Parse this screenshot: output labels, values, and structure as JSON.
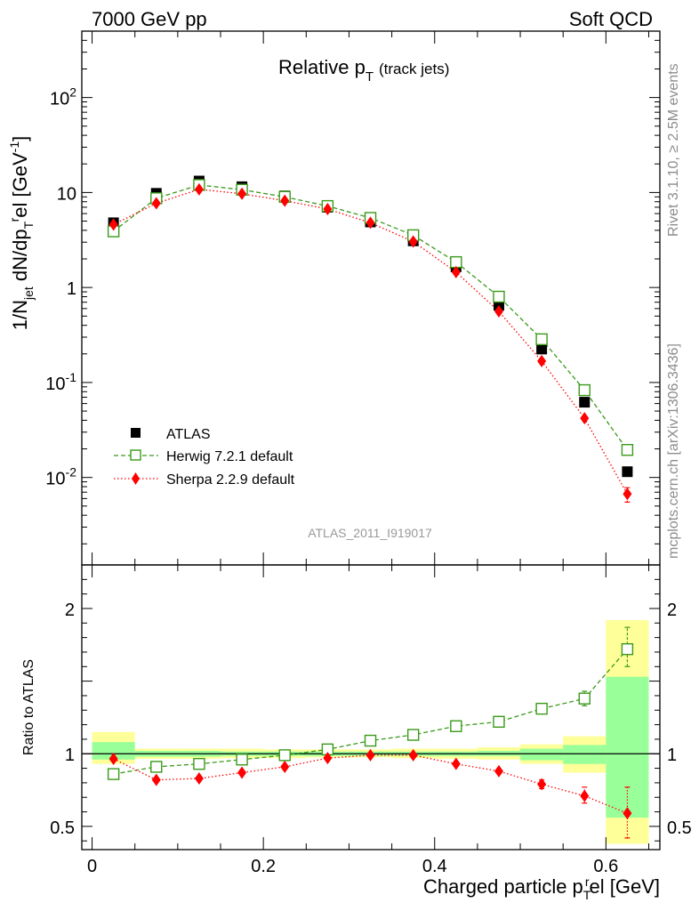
{
  "header": {
    "left": "7000 GeV pp",
    "right": "Soft QCD"
  },
  "side_labels": {
    "rivet": "Rivet 3.1.10, ≥ 2.5M events",
    "mcplots": "mcplots.cern.ch [arXiv:1306.3436]"
  },
  "colors": {
    "atlas": "#000000",
    "herwig": "#3a9a1a",
    "sherpa": "#ff0000",
    "band_inner": "#99ff99",
    "band_outer": "#ffff99"
  },
  "chart_data": [
    {
      "type": "scatter",
      "panel": "main",
      "title_main": "Relative p",
      "title_sub": "T",
      "title_note": "(track jets)",
      "watermark": "ATLAS_2011_I919017",
      "ylabel_parts": [
        "1/N",
        "jet",
        " dN/dp",
        "T",
        "r",
        "el [GeV",
        "-1",
        "]"
      ],
      "yscale": "log",
      "ylim": [
        0.0012,
        500
      ],
      "yticks": [
        {
          "value": 0.01,
          "base": "10",
          "exp": "-2"
        },
        {
          "value": 0.1,
          "base": "10",
          "exp": "-1"
        },
        {
          "value": 1,
          "base": "1",
          "exp": ""
        },
        {
          "value": 10,
          "base": "10",
          "exp": ""
        },
        {
          "value": 100,
          "base": "10",
          "exp": "2"
        }
      ],
      "legend_position": "bottom-left",
      "x": [
        0.025,
        0.075,
        0.125,
        0.175,
        0.225,
        0.275,
        0.325,
        0.375,
        0.425,
        0.475,
        0.525,
        0.575,
        0.625
      ],
      "series": [
        {
          "name": "ATLAS",
          "values": [
            4.8,
            9.8,
            13.2,
            11.5,
            9.2,
            7.0,
            4.9,
            3.1,
            1.65,
            0.65,
            0.225,
            0.062,
            0.0115
          ]
        },
        {
          "name": "Herwig 7.2.1 default",
          "values": [
            3.9,
            8.7,
            12.0,
            10.7,
            9.0,
            7.2,
            5.4,
            3.55,
            1.85,
            0.8,
            0.285,
            0.083,
            0.0195
          ]
        },
        {
          "name": "Sherpa 2.2.9 default",
          "values": [
            4.6,
            7.7,
            10.8,
            9.7,
            8.2,
            6.7,
            4.8,
            3.05,
            1.45,
            0.56,
            0.168,
            0.042,
            0.0067
          ]
        }
      ],
      "error_bars": {
        "herwig_last": [
          0.018,
          0.021
        ],
        "sherpa_last": [
          0.0055,
          0.0078
        ]
      }
    },
    {
      "type": "scatter",
      "panel": "ratio",
      "xlabel_parts": [
        "Charged particle p",
        "T",
        "r",
        "el [GeV]"
      ],
      "ylabel": "Ratio to ATLAS",
      "xlim": [
        -0.012,
        0.663
      ],
      "ylim": [
        0.34,
        2.3
      ],
      "xticks": [
        {
          "value": 0,
          "label": "0"
        },
        {
          "value": 0.2,
          "label": "0.2"
        },
        {
          "value": 0.4,
          "label": "0.4"
        },
        {
          "value": 0.6,
          "label": "0.6"
        }
      ],
      "yticks": [
        {
          "value": 0.5,
          "label": "0.5"
        },
        {
          "value": 1,
          "label": "1"
        },
        {
          "value": 2,
          "label": "2"
        }
      ],
      "bin_edges": [
        0,
        0.05,
        0.1,
        0.15,
        0.2,
        0.25,
        0.3,
        0.35,
        0.4,
        0.45,
        0.5,
        0.55,
        0.6,
        0.65
      ],
      "band_inner": [
        [
          0.96,
          1.08
        ],
        [
          0.98,
          1.02
        ],
        [
          0.98,
          1.02
        ],
        [
          0.985,
          1.015
        ],
        [
          0.985,
          1.015
        ],
        [
          0.985,
          1.015
        ],
        [
          0.985,
          1.015
        ],
        [
          0.985,
          1.015
        ],
        [
          0.985,
          1.015
        ],
        [
          0.985,
          1.02
        ],
        [
          0.955,
          1.035
        ],
        [
          0.93,
          1.06
        ],
        [
          0.56,
          1.53
        ]
      ],
      "band_outer": [
        [
          0.93,
          1.15
        ],
        [
          0.965,
          1.035
        ],
        [
          0.965,
          1.035
        ],
        [
          0.97,
          1.035
        ],
        [
          0.97,
          1.03
        ],
        [
          0.975,
          1.03
        ],
        [
          0.975,
          1.03
        ],
        [
          0.97,
          1.035
        ],
        [
          0.965,
          1.035
        ],
        [
          0.96,
          1.045
        ],
        [
          0.93,
          1.065
        ],
        [
          0.87,
          1.12
        ],
        [
          0.38,
          1.92
        ]
      ],
      "x": [
        0.025,
        0.075,
        0.125,
        0.175,
        0.225,
        0.275,
        0.325,
        0.375,
        0.425,
        0.475,
        0.525,
        0.575,
        0.625
      ],
      "series": [
        {
          "name": "Herwig 7.2.1 default",
          "values": [
            0.86,
            0.91,
            0.93,
            0.96,
            0.99,
            1.03,
            1.09,
            1.13,
            1.19,
            1.22,
            1.31,
            1.38,
            1.72
          ]
        },
        {
          "name": "Sherpa 2.2.9 default",
          "values": [
            0.965,
            0.82,
            0.83,
            0.87,
            0.91,
            0.97,
            0.99,
            0.99,
            0.93,
            0.88,
            0.79,
            0.71,
            0.59
          ]
        }
      ],
      "error_bars": {
        "herwig": [
          null,
          null,
          null,
          null,
          null,
          null,
          null,
          null,
          null,
          null,
          null,
          [
            1.33,
            1.43
          ],
          [
            1.6,
            1.87
          ]
        ],
        "sherpa": [
          null,
          null,
          null,
          null,
          null,
          null,
          null,
          null,
          null,
          null,
          [
            0.76,
            0.82
          ],
          [
            0.66,
            0.77
          ],
          [
            0.42,
            0.77
          ]
        ]
      }
    }
  ]
}
